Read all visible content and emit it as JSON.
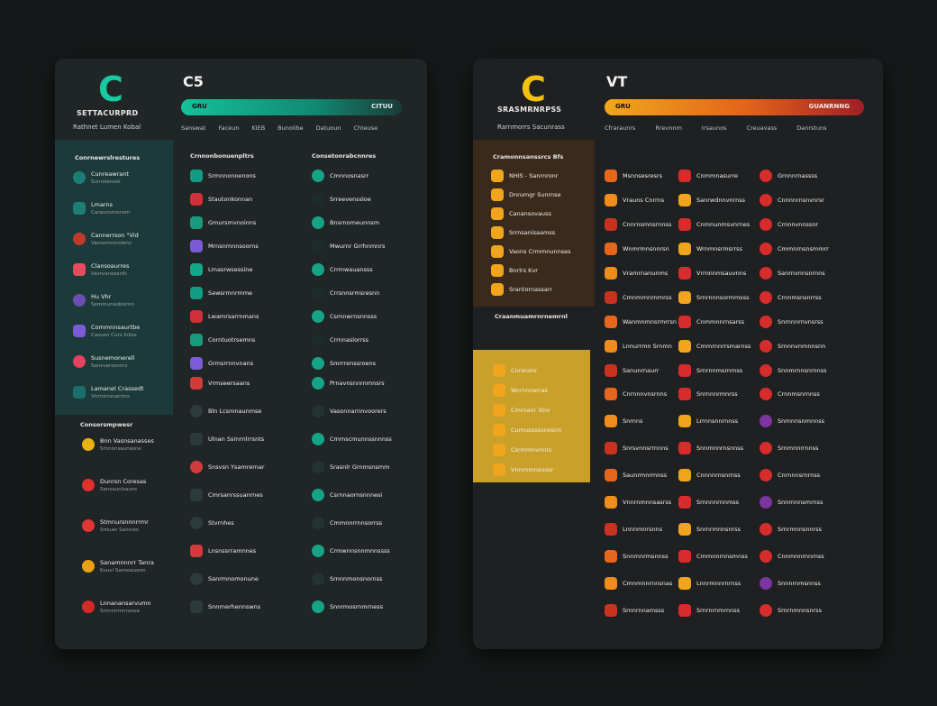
{
  "left": {
    "logo": "C",
    "title": "C5",
    "brand": "SETTACURPRD",
    "subtitle": "Rathnet Lumen Kobal",
    "bar_label_left": "GRU",
    "bar_label_right": "CITUU",
    "tools": [
      "Sanswat",
      "Faceun",
      "KIEB",
      "Bunolibe",
      "Datuoun",
      "Chteuse"
    ],
    "accent": "#17b892",
    "side_section": "Conrnewrslrestures",
    "side_items": [
      {
        "l1": "Cunreawrant",
        "l2": "Sunrolenoel"
      },
      {
        "l1": "Lmarns",
        "l2": "Caraunsmonsrn"
      },
      {
        "l1": "Cannerrson \"Vid",
        "l2": "Vansomnmslenn"
      },
      {
        "l1": "Clansoaurres",
        "l2": "Vasrvansoanfs"
      },
      {
        "l1": "Hu Vhr",
        "l2": "Semmunsoblsrnn"
      },
      {
        "l1": "Commnnsaurtbe",
        "l2": "Casuon Curs Inbss"
      },
      {
        "l1": "Susnemonerell",
        "l2": "Sansvarsonnrs"
      },
      {
        "l1": "Lamanel Crassedt",
        "l2": "Vnrrornsnarrms"
      }
    ],
    "col1_header": "Crnnonbonuenpltrs",
    "col2_header": "Consetonrabcnnres",
    "col1": [
      "Srmnnonoenons",
      "Stautonkonnan",
      "Gmursmvnoinns",
      "Mrnsnmnnsoorns",
      "Lmasrwsessine",
      "Sawsrmnrmme",
      "Lwamrsarrnmans",
      "Corntuotrsemns",
      "Grmsrrnnvnans"
    ],
    "col2": [
      "Cmnnosnasrr",
      "Srreevenssloe",
      "Bnsrnomeunnsm",
      "Mwurnr Grrhnmnrs",
      "Crrmwauansss",
      "Crrsnnsrmsresnn",
      "Csmnwrnsnnsss",
      "Crrnnaslorrss",
      "Smrrrenssroens"
    ],
    "lower_section": "Consorsmpwesr",
    "lower_items": [
      {
        "l1": "Bnn Vasnsanasses",
        "l2": "Srnnonsaunasne"
      },
      {
        "l1": "Dunrsn Coresas",
        "l2": "Sansaunlsauns"
      },
      {
        "l1": "Stmnursnnnrrmr",
        "l2": "Srouan Sansres"
      },
      {
        "l1": "Sanamnnnrr Tanra",
        "l2": "Kuuvi Sansoeuenn"
      },
      {
        "l1": "Lnnanansarvumn",
        "l2": "Srnnnnmnnssse"
      }
    ],
    "col1b": [
      "Vrmseersaans",
      "Bln Lcsmnaunmse",
      "Ulnan Ssrnrnlrrsnts",
      "Snsvsn Ysamrernar",
      "Cmrsanrssuanrnes",
      "Stvrnhes",
      "Lnsnssrramnnes",
      "Sanrmnomonune",
      "Snnrnerhennswns"
    ],
    "col2b": [
      "Prnavnsnnrnmnsrs",
      "Vasonnarnnvoorers",
      "Cmmscmunnssnnnss",
      "Srasnlr Grnmsnsmm",
      "Csrnnaornsnnnesi",
      "Cmmnnrrnnsorrss",
      "Crmwnnsnnmnnssss",
      "Srnnnmonsnornss",
      "Snnrmosrnmrness"
    ]
  },
  "right": {
    "logo": "C",
    "title": "VT",
    "brand": "SRASMRNRPSS",
    "subtitle": "Rarnmorrs Sacunrass",
    "bar_label_left": "GRU",
    "bar_label_right": "GUANRNNG",
    "tools": [
      "Cfraraunrs",
      "Rrevnnm",
      "Irsaunos",
      "Creuavass",
      "Danrstuns"
    ],
    "accent": "#f0a51c",
    "side_section": "Cramonnsanssrcs Bfs",
    "side_items": [
      {
        "l1": "NHIS - Sanrnronr",
        "l2": ""
      },
      {
        "l1": "Dnrumgr Sunrnse",
        "l2": ""
      },
      {
        "l1": "Canansovauss",
        "l2": ""
      },
      {
        "l1": "Srrnsanisaamss",
        "l2": ""
      },
      {
        "l1": "Vaons Crmmnunnses",
        "l2": ""
      },
      {
        "l1": "Bnrlrs Kvr",
        "l2": ""
      },
      {
        "l1": "Srantornassarr",
        "l2": ""
      }
    ],
    "gold_section": "Craanmuamrnrnemrnl",
    "gold_items": [
      "Cnrsnsnr",
      "Wcrnnnsrras",
      "Cmrnanr Stnr",
      "Cumussssonosnn",
      "Csrmmnvnnrs",
      "Vnnrnmnsnosr"
    ],
    "col1": [
      "Msnnsesresrs",
      "Vrauns Cnrrns",
      "Cnnrnsmnsrnnss",
      "Wnmrmnsnnrsn",
      "Vramrnanunms",
      "Cmnmrnnrnmrss",
      "Wanmnmnsrmrrsn",
      "Lnnurrmn Srnmn",
      "Sanunrnaurr"
    ],
    "col2": [
      "Cnmmnasurre",
      "Sanrwdnnvnrnss",
      "Cnmnunmsvnrnes",
      "Wrnmnsrmsrrss",
      "Vrrnnnmsauvnns",
      "Srnrnnnsormmsss",
      "Cnmmnnrnsarss",
      "Cmmrnnrrsmarnss",
      "Srnrnnmsrnmss"
    ],
    "col3": [
      "Grnnnrnassss",
      "Cnnnnrnsnvnrsr",
      "Crnnnvnnssnr",
      "Cmmnrnsnsmmrr",
      "Sanrnvnnsnrnns",
      "Crnnmsnsnrrss",
      "Snrnnnrnvnsrss",
      "Srnnnvnmnnsnn",
      "Snnmrnnsnrnnss"
    ],
    "col1b": [
      "Cnrnnnvnsrnns",
      "Snrnns",
      "Snrsvnnsrrnnns",
      "Saunrmnrmnss",
      "Vnnrnmnnsasrss",
      "Lnnnmnrsnns",
      "Snnrnnrmsnnss",
      "Cmnmnnrnnsnas",
      "Srnnrnnamsss"
    ],
    "col2b": [
      "Snrnnnrmnrss",
      "Lrrnnsnnrnnss",
      "Snnmnnrnsnnss",
      "Cnnnnrnsnrnss",
      "Srnnnnrnnmss",
      "Snrnrmnnsnrss",
      "Cmmnnrnnsmnss",
      "Lnnrmnnrnrnss",
      "Srnrnrnmrnnss"
    ],
    "col3b": [
      "Crnnmsnrnnss",
      "Snrnnnsnmnnss",
      "Srnmnnrrnnss",
      "Cnrnnnsrnrnss",
      "Snnrnnnsmrnss",
      "Srnrmnnsnnrss",
      "Cnnmnnrnnrnss",
      "Snnnrnmsnnss",
      "Srnrnmnnsnrss"
    ]
  }
}
